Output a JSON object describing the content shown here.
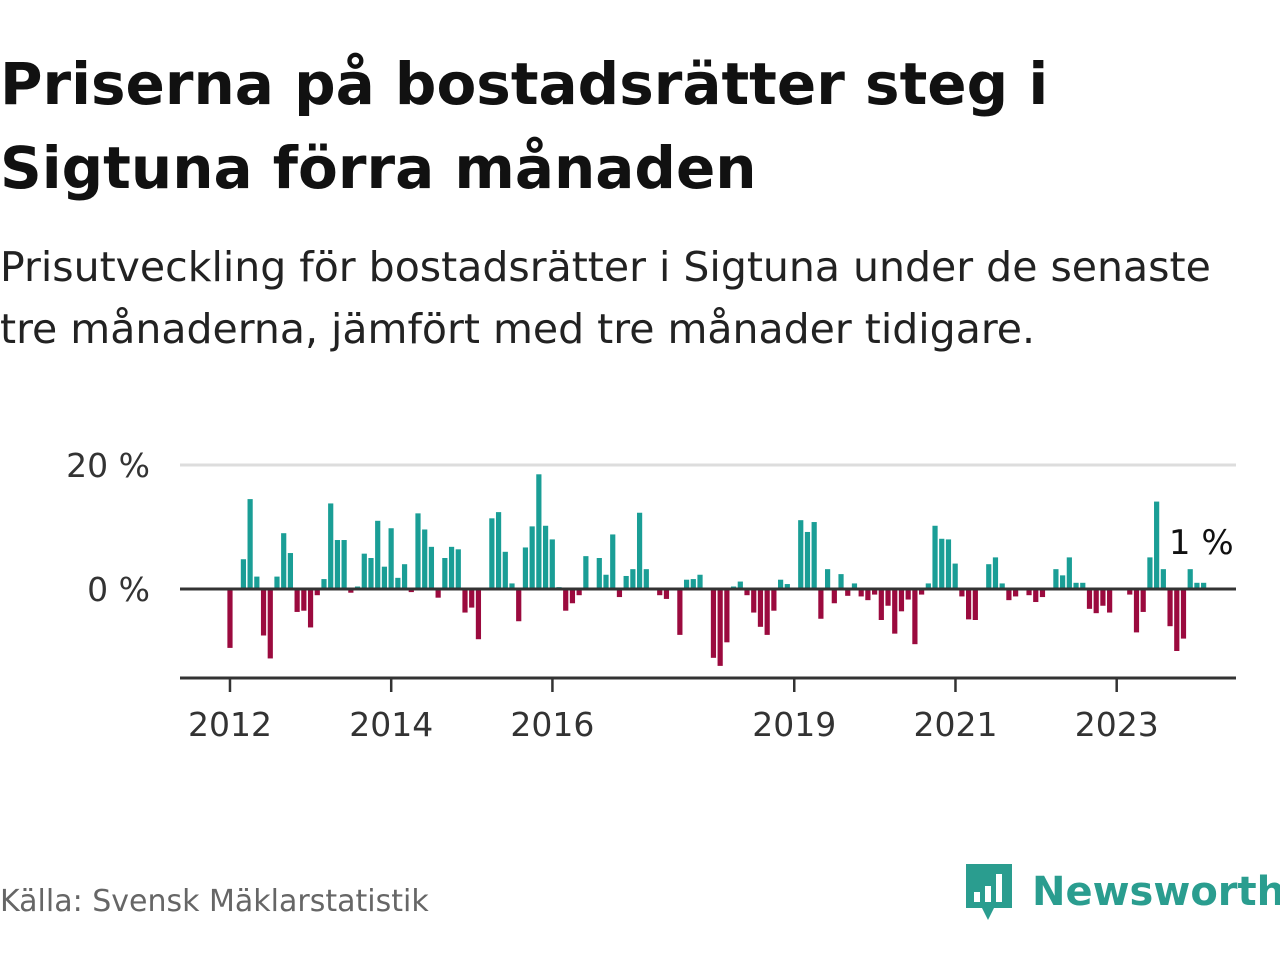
{
  "header": {
    "title": "Priserna på bostadsrätter steg i Sigtuna förra månaden",
    "subtitle": "Prisutveckling för bostadsrätter i Sigtuna under de senaste tre månaderna, jämfört med tre månader tidigare."
  },
  "footer": {
    "source": "Källa: Svensk Mäklarstatistik",
    "brand": "Newsworthy"
  },
  "colors": {
    "positive": "#1a9e96",
    "negative": "#9b0a3e",
    "brand": "#2a9d8f"
  },
  "chart_data": {
    "type": "bar",
    "title": "Priserna på bostadsrätter steg i Sigtuna förra månaden",
    "xlabel": "",
    "ylabel": "",
    "ylim": [
      -14,
      20
    ],
    "y_ticks": [
      {
        "value": 0,
        "label": "0 %"
      },
      {
        "value": 20,
        "label": "20 %"
      }
    ],
    "x_ticks": [
      {
        "x": 2012,
        "label": "2012"
      },
      {
        "x": 2014,
        "label": "2014"
      },
      {
        "x": 2016,
        "label": "2016"
      },
      {
        "x": 2019,
        "label": "2019"
      },
      {
        "x": 2021,
        "label": "2021"
      },
      {
        "x": 2023,
        "label": "2023"
      }
    ],
    "x_range": [
      2011.38,
      2024.48
    ],
    "start": 2012.0,
    "step": 0.0833,
    "last_label": "1 %",
    "values": [
      -9.5,
      0,
      4.8,
      14.5,
      2,
      -7.5,
      -11.2,
      2,
      9,
      5.8,
      -3.7,
      -3.5,
      -6.2,
      -1,
      1.6,
      13.8,
      7.9,
      7.9,
      -0.6,
      0.4,
      5.7,
      5,
      11,
      3.6,
      9.8,
      1.8,
      4,
      -0.5,
      12.2,
      9.6,
      6.8,
      -1.4,
      5,
      6.8,
      6.4,
      -3.8,
      -3,
      -8.1,
      0,
      11.4,
      12.4,
      6,
      0.9,
      -5.2,
      6.7,
      10.1,
      18.5,
      10.2,
      8,
      0.3,
      -3.5,
      -2.3,
      -1,
      5.3,
      0,
      5,
      2.3,
      8.8,
      -1.3,
      2.1,
      3.2,
      12.3,
      3.2,
      0,
      -1,
      -1.6,
      0,
      -7.4,
      1.5,
      1.6,
      2.3,
      0,
      -11.1,
      -12.4,
      -8.6,
      0.4,
      1.2,
      -1,
      -3.8,
      -6.1,
      -7.4,
      -3.5,
      1.5,
      0.8,
      0,
      11.1,
      9.2,
      10.8,
      -4.8,
      3.2,
      -2.3,
      2.4,
      -1.1,
      0.9,
      -1.2,
      -1.8,
      -0.9,
      -5,
      -2.7,
      -7.2,
      -3.6,
      -1.7,
      -8.9,
      -0.9,
      0.9,
      10.2,
      8.1,
      8,
      4.1,
      -1.2,
      -4.9,
      -5,
      0,
      4,
      5.1,
      0.9,
      -1.8,
      -1.2,
      0,
      -1,
      -2.1,
      -1.3,
      0,
      3.2,
      2.2,
      5.1,
      1,
      1,
      -3.2,
      -3.9,
      -2.7,
      -3.8,
      0,
      0,
      -0.9,
      -7,
      -3.7,
      5.1,
      14.1,
      3.2,
      -6,
      -10,
      -8,
      3.2,
      1,
      1
    ]
  }
}
